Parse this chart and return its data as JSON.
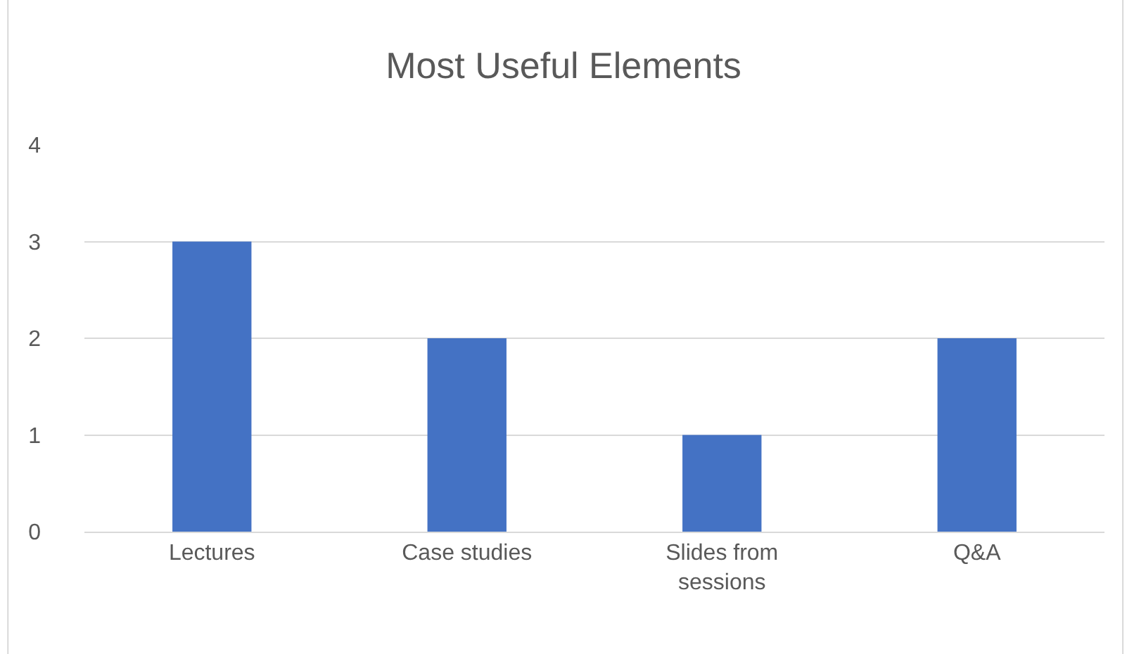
{
  "chart_data": {
    "type": "bar",
    "title": "Most Useful Elements",
    "categories": [
      "Lectures",
      "Case studies",
      "Slides from sessions",
      "Q&A"
    ],
    "values": [
      3,
      2,
      1,
      2
    ],
    "color": "#4472c4",
    "ylim": [
      0,
      4
    ],
    "yticks": [
      0,
      1,
      2,
      3,
      4
    ],
    "grid": "y",
    "legend": false
  }
}
